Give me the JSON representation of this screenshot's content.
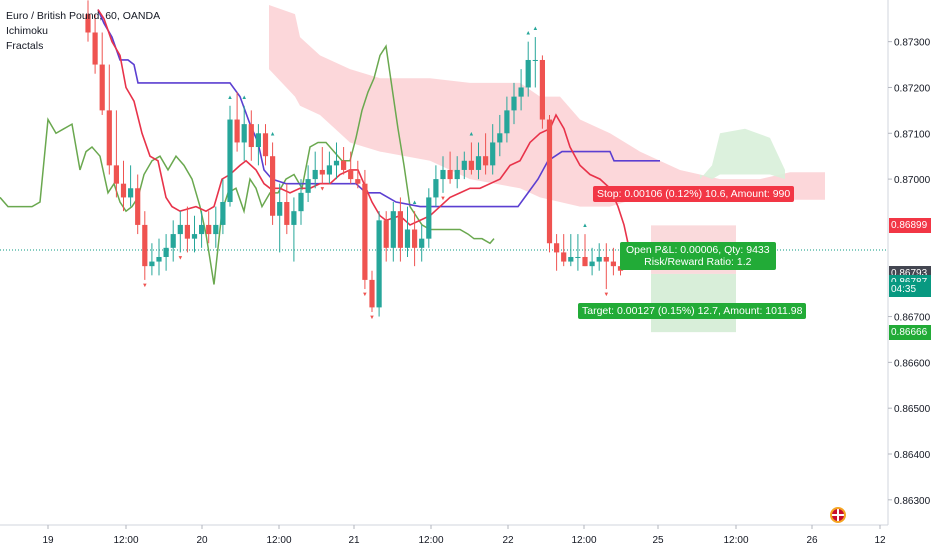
{
  "legend": {
    "symbol": "Euro / British Pound, 60, OANDA",
    "indicators": [
      "Ichimoku",
      "Fractals"
    ]
  },
  "axis": {
    "price_ticks": [
      "0.87300",
      "0.87200",
      "0.87100",
      "0.87000",
      "0.86700",
      "0.86600",
      "0.86500",
      "0.86400",
      "0.86300"
    ],
    "time_ticks": [
      "19",
      "12:00",
      "20",
      "12:00",
      "21",
      "12:00",
      "22",
      "12:00",
      "25",
      "12:00",
      "26",
      "12"
    ]
  },
  "price_tags": [
    {
      "label": "0.86899",
      "color": "#f23645",
      "value": 0.86899
    },
    {
      "label": "0.86793",
      "color": "#434651",
      "value": 0.86793
    },
    {
      "label": "0.86787",
      "color": "#089981",
      "value": 0.86774
    },
    {
      "label": "04:35",
      "color": "#089981",
      "value": 0.86758
    },
    {
      "label": "0.86666",
      "color": "#22ab37",
      "value": 0.86666
    }
  ],
  "position": {
    "stop_text": "Stop: 0.00106 (0.12%) 10.6, Amount: 990",
    "pnl_line1": "Open P&L: 0.00006, Qty: 9433",
    "pnl_line2": "Risk/Reward Ratio: 1.2",
    "target_text": "Target: 0.00127 (0.15%) 12.7, Amount: 1011.98",
    "entry": 0.86793,
    "stop": 0.86899,
    "target": 0.86666
  },
  "colors": {
    "bull": "#26a69a",
    "bear": "#ef5350",
    "tenkan": "#e8334a",
    "kijun": "#5b3fd1",
    "chikou": "#6aa84f",
    "cloud": "#fbd0d3",
    "cloud_green": "#d8f0d9",
    "stop_zone": "#f9d6d8",
    "target_zone": "#d4ecd5"
  },
  "chart_data": {
    "type": "candlestick",
    "ylim": [
      0.8627,
      0.8738
    ],
    "open": [
      0.8736,
      0.8732,
      0.8725,
      0.8715,
      0.8703,
      0.8699,
      0.8696,
      0.8698,
      0.869,
      0.8681,
      0.8682,
      0.8683,
      0.8685,
      0.8688,
      0.869,
      0.8687,
      0.8688,
      0.869,
      0.8688,
      0.869,
      0.8695,
      0.8713,
      0.8708,
      0.8712,
      0.8707,
      0.871,
      0.8705,
      0.8692,
      0.8695,
      0.869,
      0.8693,
      0.8697,
      0.87,
      0.8702,
      0.8701,
      0.8703,
      0.8704,
      0.8702,
      0.87,
      0.8699,
      0.8678,
      0.8672,
      0.8691,
      0.8685,
      0.8693,
      0.8685,
      0.8689,
      0.8685,
      0.8687,
      0.8696,
      0.87,
      0.8702,
      0.87,
      0.8702,
      0.8704,
      0.8702,
      0.8705,
      0.8703,
      0.8708,
      0.871,
      0.8715,
      0.8718,
      0.872,
      0.8726,
      0.8726,
      0.8713,
      0.8686,
      0.8684,
      0.8682,
      0.8683,
      0.8683,
      0.8681,
      0.8682,
      0.8683,
      0.8682,
      0.8681
    ],
    "high": [
      0.8739,
      0.8736,
      0.8732,
      0.8725,
      0.8715,
      0.8704,
      0.8703,
      0.8701,
      0.8693,
      0.8686,
      0.8687,
      0.8688,
      0.8691,
      0.8693,
      0.8694,
      0.8692,
      0.8693,
      0.8693,
      0.8694,
      0.87,
      0.8716,
      0.8719,
      0.8716,
      0.8715,
      0.8712,
      0.8712,
      0.8708,
      0.8699,
      0.8699,
      0.8696,
      0.87,
      0.8703,
      0.8706,
      0.8707,
      0.8706,
      0.8708,
      0.8707,
      0.8706,
      0.8704,
      0.8702,
      0.868,
      0.8693,
      0.8693,
      0.8695,
      0.8696,
      0.8694,
      0.8693,
      0.869,
      0.8698,
      0.8703,
      0.8705,
      0.8706,
      0.8705,
      0.8706,
      0.8708,
      0.8708,
      0.871,
      0.8712,
      0.8714,
      0.8718,
      0.8721,
      0.8724,
      0.873,
      0.8731,
      0.8727,
      0.8714,
      0.8688,
      0.8688,
      0.8688,
      0.8688,
      0.8688,
      0.8685,
      0.8686,
      0.8686,
      0.8685,
      0.8683
    ],
    "low": [
      0.873,
      0.8723,
      0.8714,
      0.8701,
      0.8696,
      0.8693,
      0.8694,
      0.8688,
      0.8678,
      0.8679,
      0.8679,
      0.868,
      0.8682,
      0.8684,
      0.8684,
      0.8684,
      0.8685,
      0.8686,
      0.8685,
      0.8688,
      0.8694,
      0.8706,
      0.8704,
      0.8704,
      0.8703,
      0.8703,
      0.869,
      0.8684,
      0.8688,
      0.8682,
      0.869,
      0.8695,
      0.8698,
      0.8699,
      0.8699,
      0.87,
      0.8701,
      0.8699,
      0.8698,
      0.8676,
      0.8671,
      0.867,
      0.8682,
      0.8682,
      0.8682,
      0.8683,
      0.8681,
      0.8682,
      0.8685,
      0.8694,
      0.8697,
      0.8699,
      0.8698,
      0.87,
      0.8701,
      0.87,
      0.8701,
      0.8701,
      0.8705,
      0.8708,
      0.8712,
      0.8715,
      0.8718,
      0.872,
      0.8711,
      0.8684,
      0.868,
      0.8681,
      0.8681,
      0.868,
      0.8681,
      0.8679,
      0.868,
      0.8676,
      0.8679,
      0.8679
    ],
    "close": [
      0.8732,
      0.8725,
      0.8715,
      0.8703,
      0.8699,
      0.8696,
      0.8698,
      0.869,
      0.8681,
      0.8682,
      0.8683,
      0.8685,
      0.8688,
      0.869,
      0.8687,
      0.8688,
      0.869,
      0.8688,
      0.869,
      0.8695,
      0.8713,
      0.8708,
      0.8712,
      0.8707,
      0.871,
      0.8705,
      0.8692,
      0.8695,
      0.869,
      0.8693,
      0.8697,
      0.87,
      0.8702,
      0.8701,
      0.8703,
      0.8704,
      0.8702,
      0.87,
      0.8699,
      0.8678,
      0.8672,
      0.8691,
      0.8685,
      0.8693,
      0.8685,
      0.8689,
      0.8685,
      0.8687,
      0.8696,
      0.87,
      0.8702,
      0.87,
      0.8702,
      0.8704,
      0.8702,
      0.8705,
      0.8703,
      0.8708,
      0.871,
      0.8715,
      0.8718,
      0.872,
      0.8726,
      0.8726,
      0.8713,
      0.8686,
      0.8684,
      0.8682,
      0.8683,
      0.8683,
      0.8681,
      0.8682,
      0.8683,
      0.8682,
      0.8681,
      0.868
    ]
  }
}
